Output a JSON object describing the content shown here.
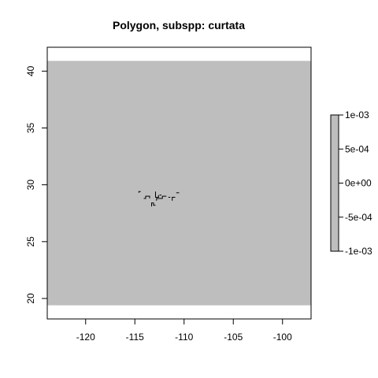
{
  "chart_data": {
    "type": "heatmap",
    "title": "Polygon, subspp: curtata",
    "xlabel": "",
    "ylabel": "",
    "xlim": [
      -123.9,
      -97.1
    ],
    "ylim": [
      18.2,
      42.1
    ],
    "x_ticks": [
      -120,
      -115,
      -110,
      -105,
      -100
    ],
    "x_tick_labels": [
      "-120",
      "-115",
      "-110",
      "-105",
      "-100"
    ],
    "y_ticks": [
      20,
      25,
      30,
      35,
      40
    ],
    "y_tick_labels": [
      "20",
      "25",
      "30",
      "35",
      "40"
    ],
    "raster_extent": {
      "x": [
        -123.9,
        -97.1
      ],
      "y": [
        19.4,
        40.9
      ]
    },
    "raster_value": 0,
    "raster_color": "#bebebe",
    "polygon_color": "#000000",
    "polygon_segments": [
      [
        [
          -114.6,
          29.3
        ],
        [
          -114.6,
          29.4
        ],
        [
          -114.4,
          29.4
        ]
      ],
      [
        [
          -114.1,
          28.8
        ],
        [
          -113.9,
          28.8
        ],
        [
          -113.9,
          29.0
        ],
        [
          -113.5,
          29.0
        ],
        [
          -113.5,
          28.8
        ]
      ],
      [
        [
          -113.3,
          28.1
        ],
        [
          -113.3,
          28.4
        ],
        [
          -113.1,
          28.4
        ],
        [
          -113.1,
          28.2
        ],
        [
          -112.9,
          28.2
        ]
      ],
      [
        [
          -112.9,
          29.4
        ],
        [
          -112.9,
          28.9
        ],
        [
          -112.6,
          28.9
        ],
        [
          -112.6,
          29.1
        ]
      ],
      [
        [
          -112.8,
          28.6
        ],
        [
          -112.8,
          28.8
        ],
        [
          -112.2,
          28.8
        ],
        [
          -112.2,
          29.0
        ],
        [
          -111.8,
          29.0
        ]
      ],
      [
        [
          -112.5,
          29.1
        ],
        [
          -112.3,
          29.1
        ]
      ],
      [
        [
          -111.6,
          28.9
        ],
        [
          -111.4,
          28.9
        ]
      ],
      [
        [
          -111.2,
          28.6
        ],
        [
          -111.2,
          28.9
        ],
        [
          -110.9,
          28.9
        ]
      ],
      [
        [
          -110.8,
          29.3
        ],
        [
          -110.5,
          29.3
        ]
      ]
    ],
    "legend": {
      "position": "right",
      "range": [
        -0.001,
        0.001
      ],
      "ticks": [
        0.001,
        0.0005,
        0,
        -0.0005,
        -0.001
      ],
      "tick_labels": [
        "1e-03",
        "5e-04",
        "0e+00",
        "-5e-04",
        "-1e-03"
      ],
      "color": "#bebebe"
    },
    "grid": false
  }
}
